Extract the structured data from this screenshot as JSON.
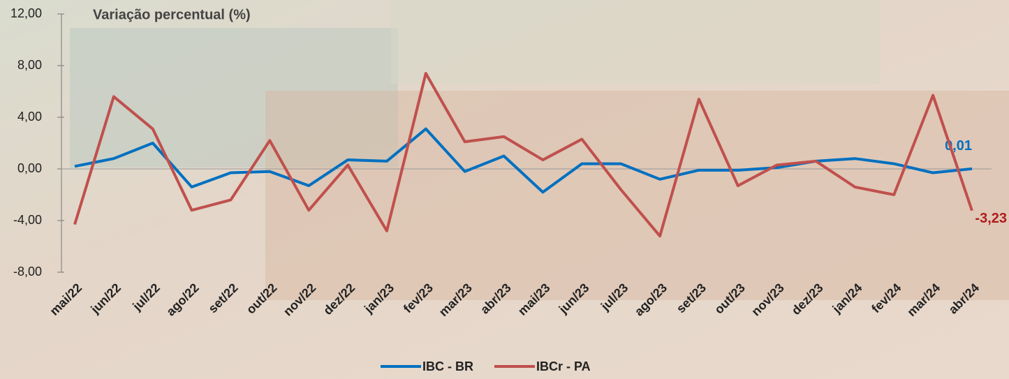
{
  "chart_data": {
    "type": "line",
    "title": "Variação percentual (%)",
    "categories": [
      "mai/22",
      "jun/22",
      "jul/22",
      "ago/22",
      "set/22",
      "out/22",
      "nov/22",
      "dez/22",
      "jan/23",
      "fev/23",
      "mar/23",
      "abr/23",
      "mai/23",
      "jun/23",
      "jul/23",
      "ago/23",
      "set/23",
      "out/23",
      "nov/23",
      "dez/23",
      "jan/24",
      "fev/24",
      "mar/24",
      "abr/24"
    ],
    "series": [
      {
        "name": "IBC - BR",
        "color": "#0070c0",
        "values": [
          0.2,
          0.8,
          2.0,
          -1.4,
          -0.3,
          -0.2,
          -1.3,
          0.7,
          0.6,
          3.1,
          -0.2,
          1.0,
          -1.8,
          0.4,
          0.4,
          -0.8,
          -0.1,
          -0.1,
          0.1,
          0.6,
          0.8,
          0.4,
          -0.3,
          0.01
        ],
        "value_labels": [
          null,
          null,
          null,
          null,
          null,
          null,
          null,
          null,
          null,
          null,
          null,
          null,
          null,
          null,
          null,
          null,
          null,
          null,
          null,
          null,
          null,
          null,
          null,
          "0,01"
        ]
      },
      {
        "name": "IBCr - PA",
        "color": "#c0504d",
        "values": [
          -4.3,
          5.6,
          3.1,
          -3.2,
          -2.4,
          2.2,
          -3.2,
          0.3,
          -4.8,
          7.4,
          2.1,
          2.5,
          0.7,
          2.3,
          -1.6,
          -5.2,
          5.4,
          -1.3,
          0.3,
          0.6,
          -1.4,
          -2.0,
          5.7,
          -3.23
        ],
        "value_labels": [
          null,
          null,
          null,
          null,
          null,
          null,
          null,
          null,
          null,
          null,
          null,
          null,
          null,
          null,
          null,
          null,
          null,
          null,
          null,
          null,
          null,
          null,
          null,
          "-3,23"
        ]
      }
    ],
    "ylim": [
      -8,
      12
    ],
    "yticks": [
      {
        "value": -8,
        "label": "-8,00"
      },
      {
        "value": -4,
        "label": "-4,00"
      },
      {
        "value": 0,
        "label": "0,00"
      },
      {
        "value": 4,
        "label": "4,00"
      },
      {
        "value": 8,
        "label": "8,00"
      },
      {
        "value": 12,
        "label": "12,00"
      }
    ]
  }
}
